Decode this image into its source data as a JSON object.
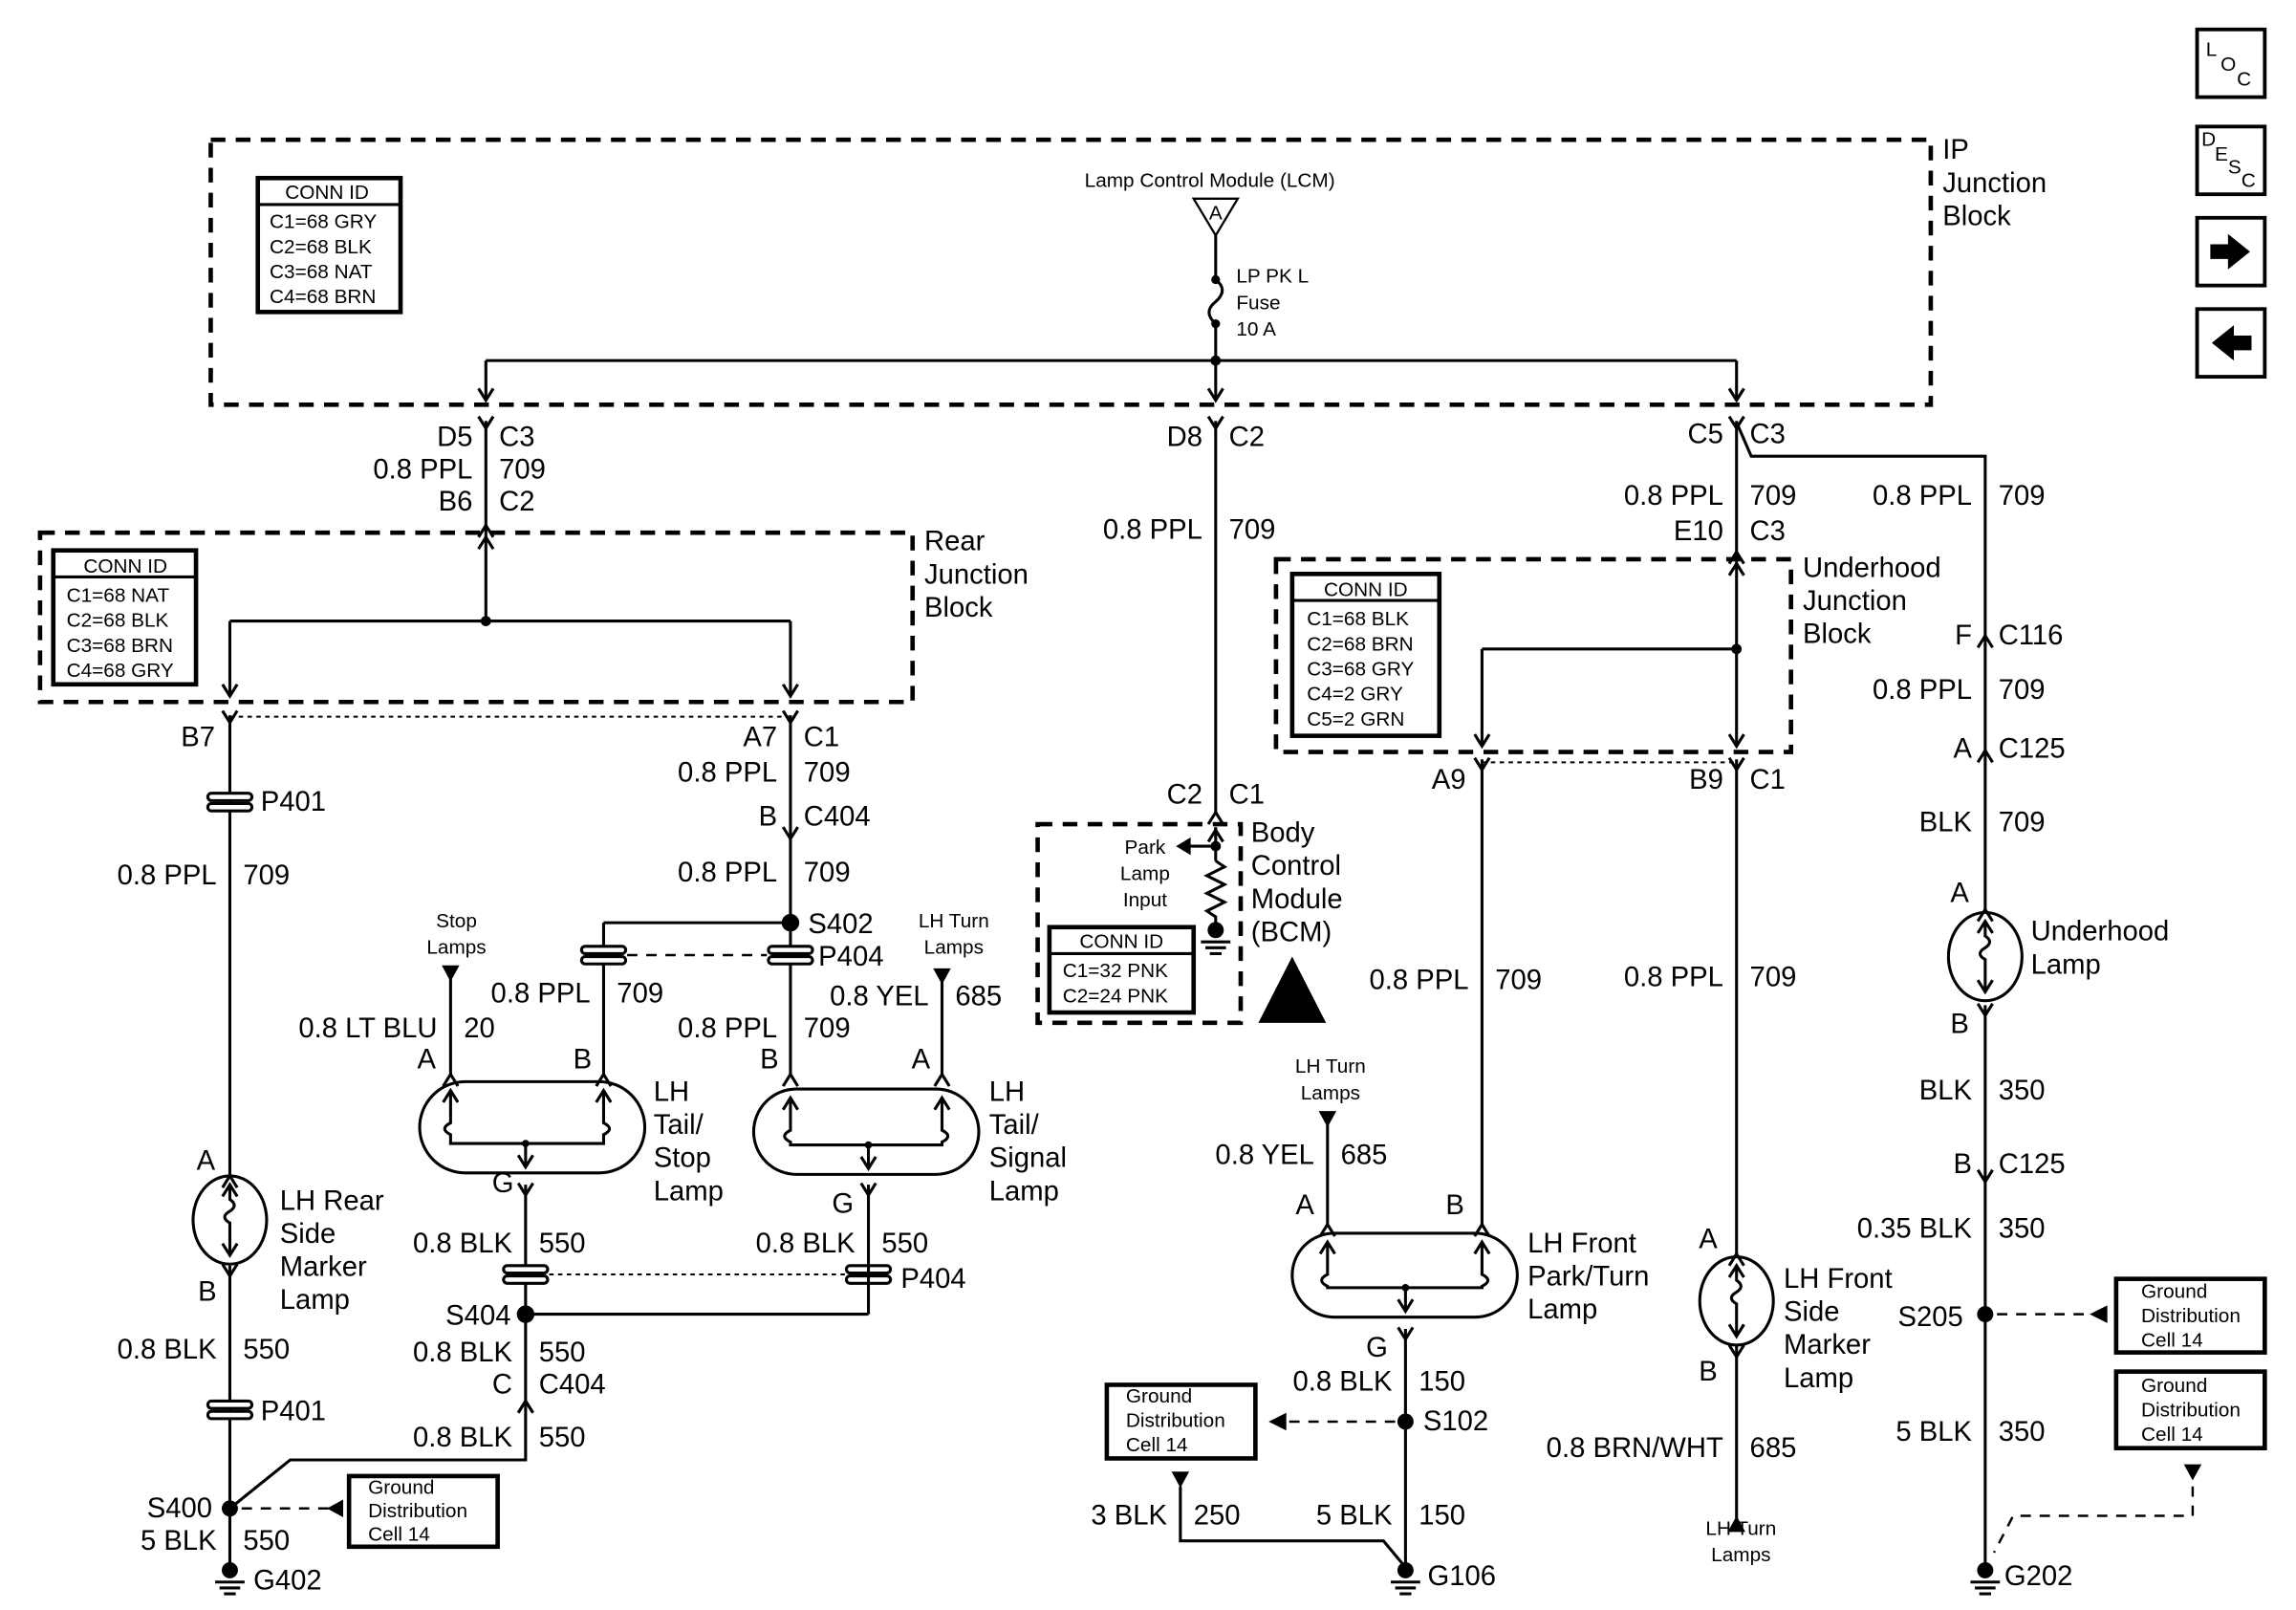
{
  "nav_buttons": {
    "loc": [
      "L",
      "O",
      "C"
    ],
    "desc": [
      "D",
      "E",
      "S",
      "C"
    ],
    "next_icon": "arrow-right-icon",
    "prev_icon": "arrow-left-icon"
  },
  "ip_junction_block": {
    "name": [
      "IP",
      "Junction",
      "Block"
    ],
    "conn_id": {
      "title": "CONN ID",
      "rows": [
        "C1=68 GRY",
        "C2=68 BLK",
        "C3=68 NAT",
        "C4=68 BRN"
      ]
    },
    "lcm_label": "Lamp Control Module (LCM)",
    "lcm_pin": "A",
    "fuse": [
      "LP PK L",
      "Fuse",
      "10 A"
    ]
  },
  "rear_junction_block": {
    "name": [
      "Rear",
      "Junction",
      "Block"
    ],
    "conn_id": {
      "title": "CONN ID",
      "rows": [
        "C1=68 NAT",
        "C2=68 BLK",
        "C3=68 BRN",
        "C4=68 GRY"
      ]
    }
  },
  "underhood_junction_block": {
    "name": [
      "Underhood",
      "Junction",
      "Block"
    ],
    "conn_id": {
      "title": "CONN ID",
      "rows": [
        "C1=68 BLK",
        "C2=68 BRN",
        "C3=68 GRY",
        "C4=2 GRY",
        "C5=2 GRN"
      ]
    }
  },
  "bcm": {
    "name": [
      "Body",
      "Control",
      "Module",
      "(BCM)"
    ],
    "input": [
      "Park",
      "Lamp",
      "Input"
    ],
    "conn_id": {
      "title": "CONN ID",
      "rows": [
        "C1=32 PNK",
        "C2=24 PNK"
      ]
    }
  },
  "ground_box": [
    "Ground",
    "Distribution",
    "Cell 14"
  ],
  "ip_to_rear": {
    "pin_top": "D5",
    "conn_top": "C3",
    "wire": "0.8 PPL",
    "circuit": "709",
    "pin_bottom": "B6",
    "conn_bottom": "C2"
  },
  "rear_side_marker": {
    "pin_b7": "B7",
    "splice_top": "P401",
    "wire_in": "0.8 PPL",
    "circuit_in": "709",
    "pin_a": "A",
    "name": [
      "LH Rear",
      "Side",
      "Marker",
      "Lamp"
    ],
    "pin_b": "B",
    "wire_out": "0.8 BLK",
    "circuit_out": "550",
    "splice_bottom": "P401",
    "splice": "S400",
    "wire_gnd": "5 BLK",
    "circuit_gnd": "550",
    "ground": "G402"
  },
  "rear_a7": {
    "pin": "A7",
    "conn": "C1",
    "wire1": "0.8 PPL",
    "circuit1": "709",
    "pin2": "B",
    "conn2": "C404",
    "wire2": "0.8 PPL",
    "circuit2": "709",
    "splice": "S402",
    "inline": "P404"
  },
  "tail_stop_lamp": {
    "source": [
      "Stop",
      "Lamps"
    ],
    "wire_a": "0.8 LT BLU",
    "circuit_a": "20",
    "wire_b": "0.8 PPL",
    "circuit_b": "709",
    "pin_a": "A",
    "pin_b": "B",
    "name": [
      "LH",
      "Tail/",
      "Stop",
      "Lamp"
    ],
    "pin_g": "G",
    "wire_g": "0.8 BLK",
    "circuit_g": "550",
    "splice": "S404",
    "wire_s": "0.8 BLK",
    "circuit_s": "550",
    "pin_c": "C",
    "conn_c": "C404",
    "wire_c": "0.8 BLK",
    "circuit_c": "550"
  },
  "tail_signal_lamp": {
    "source": [
      "LH Turn",
      "Lamps"
    ],
    "wire_a": "0.8 YEL",
    "circuit_a": "685",
    "wire_b": "0.8 PPL",
    "circuit_b": "709",
    "pin_a": "A",
    "pin_b": "B",
    "name": [
      "LH",
      "Tail/",
      "Signal",
      "Lamp"
    ],
    "pin_g": "G",
    "wire_g": "0.8 BLK",
    "circuit_g": "550",
    "inline": "P404"
  },
  "bcm_feed": {
    "pin_top": "D8",
    "conn_top": "C2",
    "wire": "0.8 PPL",
    "circuit": "709",
    "pin_bottom": "C2",
    "conn_bottom": "C1"
  },
  "ip_to_underhood": {
    "pin_top": "C5",
    "conn_top": "C3",
    "wire": "0.8 PPL",
    "circuit": "709",
    "pin_bottom": "E10",
    "conn_bottom": "C3"
  },
  "front_park_turn_lamp": {
    "pin_top": "A9",
    "wire_b": "0.8 PPL",
    "circuit_b": "709",
    "source": [
      "LH Turn",
      "Lamps"
    ],
    "wire_a": "0.8 YEL",
    "circuit_a": "685",
    "pin_a": "A",
    "pin_b": "B",
    "name": [
      "LH Front",
      "Park/Turn",
      "Lamp"
    ],
    "pin_g": "G",
    "wire_g": "0.8 BLK",
    "circuit_g": "150",
    "splice": "S102",
    "wire_gnd1": "3 BLK",
    "circuit_gnd1": "250",
    "wire_gnd2": "5 BLK",
    "circuit_gnd2": "150",
    "ground": "G106"
  },
  "front_side_marker": {
    "pin_top": "B9",
    "conn_top": "C1",
    "wire_in": "0.8 PPL",
    "circuit_in": "709",
    "pin_a": "A",
    "name": [
      "LH Front",
      "Side",
      "Marker",
      "Lamp"
    ],
    "pin_b": "B",
    "wire_out": "0.8 BRN/WHT",
    "circuit_out": "685",
    "dest": [
      "LH Turn",
      "Lamps"
    ]
  },
  "underhood_lamp": {
    "wire1": "0.8 PPL",
    "circuit1": "709",
    "pin_f": "F",
    "conn_f": "C116",
    "wire2": "0.8 PPL",
    "circuit2": "709",
    "pin_a_c125": "A",
    "conn_c125": "C125",
    "wire3": "BLK",
    "circuit3": "709",
    "pin_a": "A",
    "name": [
      "Underhood",
      "Lamp"
    ],
    "pin_b": "B",
    "wire4": "BLK",
    "circuit4": "350",
    "pin_b_c125": "B",
    "conn_b_c125": "C125",
    "wire5": "0.35 BLK",
    "circuit5": "350",
    "splice": "S205",
    "wire6": "5 BLK",
    "circuit6": "350",
    "ground": "G202"
  }
}
